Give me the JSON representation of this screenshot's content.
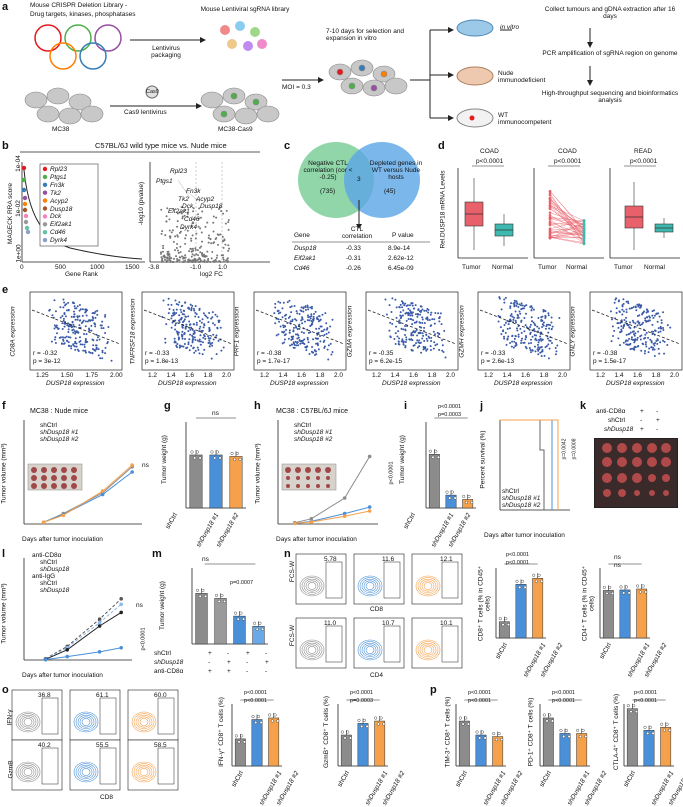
{
  "panel_letters": [
    "a",
    "b",
    "c",
    "d",
    "e",
    "f",
    "g",
    "h",
    "i",
    "j",
    "k",
    "l",
    "m",
    "n",
    "o",
    "p"
  ],
  "a": {
    "library_title": "Mouse CRISPR Deletion Library -",
    "library_subtitle": "Drug targets, kinases, phosphatases",
    "lenti_library": "Mouse Lentiviral sgRNA library",
    "lentivirus_packaging": "Lentivirus packaging",
    "cas9": "Cas9",
    "cas9_lentivirus": "Cas9 lentivirus",
    "mc38": "MC38",
    "mc38_cas9": "MC38-Cas9",
    "moi": "MOI = 0.3",
    "selection": "7-10 days for selection and expansion in vitro",
    "in_vitro": "in vitro",
    "nude": "Nude immunodeficient",
    "wt": "WT immunocompetent",
    "step1": "Collect tumours and gDNA extraction after 16 days",
    "step2": "PCR amplification of sgRNA region on genome",
    "step3": "High-throughput sequencing and bioinformatics analysis"
  },
  "b": {
    "title": "C57BL/6J wild type mice vs. Nude mice",
    "ylabel": "MAGECK RRA score",
    "xlabel": "Gene Rank",
    "yticks": [
      "1e-04",
      "1e-02",
      "1e+00"
    ],
    "xticks": [
      "0",
      "500",
      "1000",
      "1500"
    ],
    "legend": [
      "Rpl23",
      "Ptgs1",
      "Fn3k",
      "Tk2",
      "Acyp2",
      "Dusp18",
      "Dck",
      "Eif2ak1",
      "Cd46",
      "Dyrk4"
    ],
    "legend_colors": [
      "#e41a1c",
      "#4daf4a",
      "#377eb8",
      "#984ea3",
      "#ff7f00",
      "#a65628",
      "#f781bf",
      "#999999",
      "#66c2a5",
      "#8da0cb"
    ],
    "volcano_ylabel": "-log10 (pvalue)",
    "volcano_xlabel": "log2 FC",
    "volcano_xticks": [
      "-3.8",
      "-1.0",
      "1.0"
    ],
    "volcano_labels": [
      "Rpl23",
      "Ptgs1",
      "Fn3k",
      "Acyp2",
      "Tk2",
      "Dck",
      "Dusp18",
      "Eif2ak1",
      "Cd46",
      "Dyrk4"
    ]
  },
  "c": {
    "left_circle": "Negative CTL correlation (cor < -0.25)",
    "left_count": "(735)",
    "right_circle": "Depleted genes in WT versus Nude hosts",
    "right_count": "(45)",
    "overlap": "3",
    "table_headers": [
      "Gene",
      "CTL correlation",
      "P value"
    ],
    "table_rows": [
      [
        "Dusp18",
        "-0.33",
        "8.9e-14"
      ],
      [
        "Eif2ak1",
        "-0.31",
        "2.62e-12"
      ],
      [
        "Cd46",
        "-0.26",
        "6.45e-09"
      ]
    ]
  },
  "d": {
    "ylabel": "Rel.DUSP18 mRNA Levels",
    "panels": [
      {
        "title": "COAD",
        "p": "p<0.0001",
        "groups": [
          "Tumor",
          "Normal"
        ]
      },
      {
        "title": "COAD",
        "p": "p<0.0001",
        "groups": [
          "Tumor",
          "Normal"
        ]
      },
      {
        "title": "READ",
        "p": "p<0.0001",
        "groups": [
          "Tumor",
          "Normal"
        ]
      }
    ]
  },
  "e": {
    "xlabel": "DUSP18 expression",
    "plots": [
      {
        "ylabel": "CD8A expression",
        "r": "r = -0.32",
        "p": "p = 3e-12",
        "xticks": [
          "1.25",
          "1.50",
          "1.75",
          "2.00"
        ]
      },
      {
        "ylabel": "TNFRSF18 expression",
        "r": "r = -0.33",
        "p": "p = 1.8e-13",
        "xticks": [
          "1.2",
          "1.4",
          "1.6",
          "1.8",
          "2.0"
        ]
      },
      {
        "ylabel": "PRF1 expression",
        "r": "r = -0.38",
        "p": "p = 1.7e-17",
        "xticks": [
          "1.2",
          "1.4",
          "1.6",
          "1.8",
          "2.0"
        ]
      },
      {
        "ylabel": "GZMA expression",
        "r": "r = -0.35",
        "p": "p = 6.2e-15",
        "xticks": [
          "1.2",
          "1.4",
          "1.6",
          "1.8",
          "2.0"
        ]
      },
      {
        "ylabel": "GZMH expression",
        "r": "r = -0.33",
        "p": "p = 2.6e-13",
        "xticks": [
          "1.2",
          "1.4",
          "1.6",
          "1.8",
          "2.0"
        ]
      },
      {
        "ylabel": "GNLY expression",
        "r": "r = -0.38",
        "p": "p = 1.5e-17",
        "xticks": [
          "1.2",
          "1.4",
          "1.6",
          "1.8",
          "2.0"
        ]
      }
    ]
  },
  "f": {
    "title": "MC38 : Nude mice",
    "ylabel": "Tumor volume (mm³)",
    "xlabel": "Days after tumor inoculation",
    "legend": [
      "shCtrl",
      "shDusp18 #1",
      "shDusp18 #2"
    ],
    "ns": "ns"
  },
  "g": {
    "ylabel": "Tumor weight (g)",
    "ns": "ns",
    "groups": [
      "shCtrl",
      "shDusp18 #1",
      "shDusp18 #2"
    ]
  },
  "h": {
    "title": "MC38 : C57BL/6J mice",
    "ylabel": "Tumor volume (mm³)",
    "xlabel": "Days after tumor inoculation",
    "legend": [
      "shCtrl",
      "shDusp18 #1",
      "shDusp18 #2"
    ],
    "p": "p<0.0001"
  },
  "i": {
    "ylabel": "Tumor weight (g)",
    "p1": "p<0.0001",
    "p2": "p=0.0003",
    "groups": [
      "shCtrl",
      "shDusp18 #1",
      "shDusp18 #2"
    ]
  },
  "j": {
    "ylabel": "Percent survival (%)",
    "xlabel": "Days after tumor inoculation",
    "legend": [
      "shCtrl",
      "shDusp18 #1",
      "shDusp18 #2"
    ],
    "p1": "p=0.0042",
    "p2": "p=0.0008"
  },
  "k": {
    "rows": [
      "anti-CD8α",
      "shCtrl",
      "shDusp18"
    ],
    "signs": [
      [
        "+",
        "-"
      ],
      [
        "-",
        "+"
      ],
      [
        "+",
        "-"
      ]
    ]
  },
  "l": {
    "ylabel": "Tumor volume (mm³)",
    "xlabel": "Days after tumor inoculation",
    "group1": "anti-CD8α",
    "group2": "anti-IgG",
    "legend": [
      "shCtrl",
      "shDusp18",
      "shCtrl",
      "shDusp18"
    ],
    "ns": "ns",
    "p": "p<0.0001"
  },
  "m": {
    "ylabel": "Tumor weight (g)",
    "ns": "ns",
    "p": "p=0.0007",
    "rows": [
      "shCtrl",
      "shDusp18",
      "anti-CD8α"
    ],
    "signs": [
      [
        "+",
        "-",
        "+",
        "-"
      ],
      [
        "-",
        "+",
        "-",
        "+"
      ],
      [
        "+",
        "+",
        "-",
        "-"
      ]
    ]
  },
  "n": {
    "fsc": "FCS-W",
    "cd8": "CD8",
    "cd4": "CD4",
    "gates_cd8": [
      "5.78",
      "11.6",
      "12.1"
    ],
    "gates_cd4": [
      "11.0",
      "10.7",
      "10.1"
    ],
    "bar1": {
      "ylabel": "CD8⁺ T cells (% in CD45⁺ cells)",
      "p1": "p<0.0001",
      "p2": "p<0.0001"
    },
    "bar2": {
      "ylabel": "CD4⁺ T cells (% in CD45⁺ cells)",
      "ns1": "ns",
      "ns2": "ns"
    },
    "groups": [
      "shCtrl",
      "shDusp18 #1",
      "shDusp18 #2"
    ]
  },
  "o": {
    "ifn": "IFN-γ",
    "gzmb": "GzmB",
    "cd8": "CD8",
    "gates_ifn": [
      "36.8",
      "61.1",
      "60.0"
    ],
    "gates_gzmb": [
      "40.2",
      "55.5",
      "58.5"
    ],
    "bar1": {
      "ylabel": "IFN-γ⁺ CD8⁺ T cells (%)",
      "p1": "p<0.0001",
      "p2": "p<0.0001"
    },
    "bar2": {
      "ylabel": "GzmB⁺ CD8⁺ T cells (%)",
      "p1": "p<0.0001",
      "p2": "p=0.0003"
    },
    "groups": [
      "shCtrl",
      "shDusp18 #1",
      "shDusp18 #2"
    ]
  },
  "p": {
    "bar1": {
      "ylabel": "TIM-3⁺ CD8⁺ T cells (%)",
      "p1": "p<0.0001",
      "p2": "p<0.0001"
    },
    "bar2": {
      "ylabel": "PD-1⁺ CD8⁺ T cells (%)",
      "p1": "p<0.0001",
      "p2": "p<0.0001"
    },
    "bar3": {
      "ylabel": "CTLA-4⁺ CD8⁺ T cells (%)",
      "p1": "p<0.0001",
      "p2": "p<0.0001"
    },
    "groups": [
      "shCtrl",
      "shDusp18 #1",
      "shDusp18 #2"
    ]
  },
  "colors": {
    "ctrl": "#8c8c8c",
    "sh1": "#4a90d9",
    "sh2": "#f5a04a",
    "green": "#7ccf9a",
    "blue": "#5aa5e6"
  },
  "chart_data": [
    {
      "type": "bar",
      "id": "g",
      "categories": [
        "shCtrl",
        "shDusp18 #1",
        "shDusp18 #2"
      ],
      "values": [
        0.37,
        0.37,
        0.36
      ],
      "ylim": [
        0,
        0.6
      ]
    },
    {
      "type": "bar",
      "id": "i",
      "categories": [
        "shCtrl",
        "shDusp18 #1",
        "shDusp18 #2"
      ],
      "values": [
        0.5,
        0.12,
        0.08
      ],
      "ylim": [
        0,
        0.8
      ]
    },
    {
      "type": "bar",
      "id": "m",
      "categories": [
        "1",
        "2",
        "3",
        "4"
      ],
      "values": [
        1.0,
        0.9,
        0.55,
        0.35
      ],
      "ylim": [
        0,
        1.5
      ]
    },
    {
      "type": "bar",
      "id": "n1",
      "categories": [
        "shCtrl",
        "shDusp18 #1",
        "shDusp18 #2"
      ],
      "values": [
        3.5,
        11.5,
        12.8
      ],
      "ylim": [
        0,
        15
      ]
    },
    {
      "type": "bar",
      "id": "n2",
      "categories": [
        "shCtrl",
        "shDusp18 #1",
        "shDusp18 #2"
      ],
      "values": [
        10.2,
        10.3,
        10.5
      ],
      "ylim": [
        0,
        15
      ]
    },
    {
      "type": "bar",
      "id": "o1",
      "categories": [
        "shCtrl",
        "shDusp18 #1",
        "shDusp18 #2"
      ],
      "values": [
        35,
        60,
        62
      ],
      "ylim": [
        0,
        80
      ]
    },
    {
      "type": "bar",
      "id": "o2",
      "categories": [
        "shCtrl",
        "shDusp18 #1",
        "shDusp18 #2"
      ],
      "values": [
        40,
        55,
        58
      ],
      "ylim": [
        0,
        80
      ]
    },
    {
      "type": "bar",
      "id": "p1",
      "categories": [
        "shCtrl",
        "shDusp18 #1",
        "shDusp18 #2"
      ],
      "values": [
        58,
        40,
        38
      ],
      "ylim": [
        0,
        80
      ]
    },
    {
      "type": "bar",
      "id": "p2",
      "categories": [
        "shCtrl",
        "shDusp18 #1",
        "shDusp18 #2"
      ],
      "values": [
        62,
        42,
        42
      ],
      "ylim": [
        0,
        80
      ]
    },
    {
      "type": "bar",
      "id": "p3",
      "categories": [
        "shCtrl",
        "shDusp18 #1",
        "shDusp18 #2"
      ],
      "values": [
        37,
        23,
        25
      ],
      "ylim": [
        0,
        40
      ]
    },
    {
      "type": "line",
      "id": "f",
      "x": [
        6,
        8,
        12,
        15
      ],
      "series": [
        {
          "name": "shCtrl",
          "values": [
            10,
            60,
            180,
            330
          ]
        },
        {
          "name": "shDusp18 #1",
          "values": [
            10,
            55,
            170,
            300
          ]
        },
        {
          "name": "shDusp18 #2",
          "values": [
            10,
            50,
            190,
            340
          ]
        }
      ],
      "ylim": [
        0,
        600
      ]
    },
    {
      "type": "line",
      "id": "h",
      "x": [
        6,
        8,
        12,
        15
      ],
      "series": [
        {
          "name": "shCtrl",
          "values": [
            10,
            40,
            200,
            520
          ]
        },
        {
          "name": "shDusp18 #1",
          "values": [
            5,
            20,
            80,
            130
          ]
        },
        {
          "name": "shDusp18 #2",
          "values": [
            5,
            15,
            60,
            100
          ]
        }
      ],
      "ylim": [
        0,
        800
      ]
    },
    {
      "type": "line",
      "id": "l",
      "x": [
        6,
        8,
        11,
        13
      ],
      "series": [
        {
          "name": "anti-CD8α shCtrl",
          "values": [
            20,
            200,
            600,
            900
          ]
        },
        {
          "name": "anti-CD8α shDusp18",
          "values": [
            15,
            180,
            550,
            820
          ]
        },
        {
          "name": "anti-IgG shCtrl",
          "values": [
            10,
            150,
            500,
            700
          ]
        },
        {
          "name": "anti-IgG shDusp18",
          "values": [
            5,
            50,
            120,
            180
          ]
        }
      ],
      "ylim": [
        0,
        1500
      ]
    }
  ]
}
